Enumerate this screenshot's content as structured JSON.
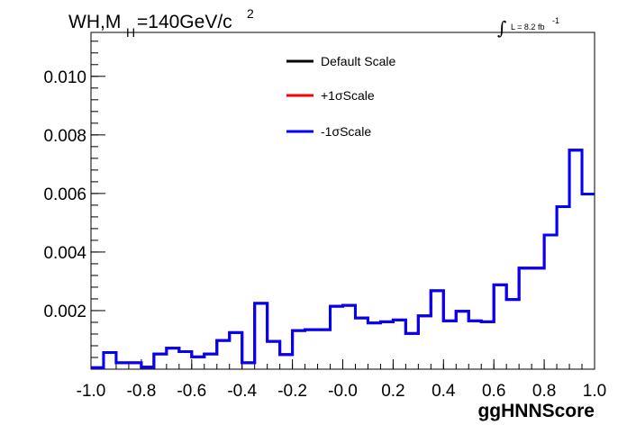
{
  "chart_data": {
    "type": "line",
    "step": true,
    "title": {
      "main": "WH,M",
      "sub": "H",
      "rest": "=140GeV/c",
      "sup": "2"
    },
    "lumi": {
      "symbol": "∫",
      "text": "L = 8.2 fb",
      "sup": "-1"
    },
    "xlabel": "ggHNNScore",
    "ylabel": "",
    "xlim": [
      -1.0,
      1.0
    ],
    "ylim": [
      0.0,
      0.0115
    ],
    "xticks": [
      -1.0,
      -0.8,
      -0.6,
      -0.4,
      -0.2,
      0.0,
      0.2,
      0.4,
      0.6,
      0.8,
      1.0
    ],
    "xtick_labels": [
      "-1.0",
      "-0.8",
      "-0.6",
      "-0.4",
      "-0.2",
      "-0.0",
      "0.2",
      "0.4",
      "0.6",
      "0.8",
      "1.0"
    ],
    "yticks": [
      0.002,
      0.004,
      0.006,
      0.008,
      0.01
    ],
    "ytick_labels": [
      "0.002",
      "0.004",
      "0.006",
      "0.008",
      "0.010"
    ],
    "bin_edges": [
      -1.0,
      -0.95,
      -0.9,
      -0.85,
      -0.8,
      -0.75,
      -0.7,
      -0.65,
      -0.6,
      -0.55,
      -0.5,
      -0.45,
      -0.4,
      -0.35,
      -0.3,
      -0.25,
      -0.2,
      -0.15,
      -0.1,
      -0.05,
      0.0,
      0.05,
      0.1,
      0.15,
      0.2,
      0.25,
      0.3,
      0.35,
      0.4,
      0.45,
      0.5,
      0.55,
      0.6,
      0.65,
      0.7,
      0.75,
      0.8,
      0.85,
      0.9,
      0.95,
      1.0
    ],
    "legend_position": "top-center",
    "series": [
      {
        "name": "Default Scale",
        "color": "#000000",
        "values": [
          5e-05,
          0.00057,
          0.00022,
          0.00022,
          7e-05,
          0.00052,
          0.00072,
          0.0006,
          0.00042,
          0.00052,
          0.00098,
          0.00125,
          0.00022,
          0.00225,
          0.00095,
          0.0005,
          0.00132,
          0.00135,
          0.00135,
          0.00215,
          0.00218,
          0.00175,
          0.00158,
          0.00162,
          0.00168,
          0.00122,
          0.00182,
          0.00268,
          0.00165,
          0.00198,
          0.00165,
          0.00162,
          0.00288,
          0.00238,
          0.00345,
          0.00345,
          0.00458,
          0.00555,
          0.00748,
          0.00598
        ]
      },
      {
        "name": "+1σScale",
        "color": "#ff0000",
        "values": [
          5e-05,
          0.00057,
          0.00022,
          0.00022,
          7e-05,
          0.00052,
          0.00072,
          0.0006,
          0.00042,
          0.00052,
          0.00098,
          0.00125,
          0.00022,
          0.00225,
          0.00095,
          0.0005,
          0.00132,
          0.00135,
          0.00135,
          0.00215,
          0.00218,
          0.00175,
          0.00158,
          0.00162,
          0.00168,
          0.00122,
          0.00182,
          0.00268,
          0.00165,
          0.00198,
          0.00165,
          0.00162,
          0.00288,
          0.00238,
          0.00345,
          0.00345,
          0.00458,
          0.00555,
          0.00748,
          0.00598
        ]
      },
      {
        "name": "-1σScale",
        "color": "#0000ff",
        "values": [
          5e-05,
          0.00057,
          0.00022,
          0.00022,
          7e-05,
          0.00052,
          0.00072,
          0.0006,
          0.00042,
          0.00052,
          0.00098,
          0.00125,
          0.00022,
          0.00225,
          0.00095,
          0.0005,
          0.00132,
          0.00135,
          0.00135,
          0.00215,
          0.00218,
          0.00175,
          0.00158,
          0.00162,
          0.00168,
          0.00122,
          0.00182,
          0.00268,
          0.00165,
          0.00198,
          0.00165,
          0.00162,
          0.00288,
          0.00238,
          0.00345,
          0.00345,
          0.00458,
          0.00555,
          0.00748,
          0.00598
        ]
      }
    ]
  }
}
